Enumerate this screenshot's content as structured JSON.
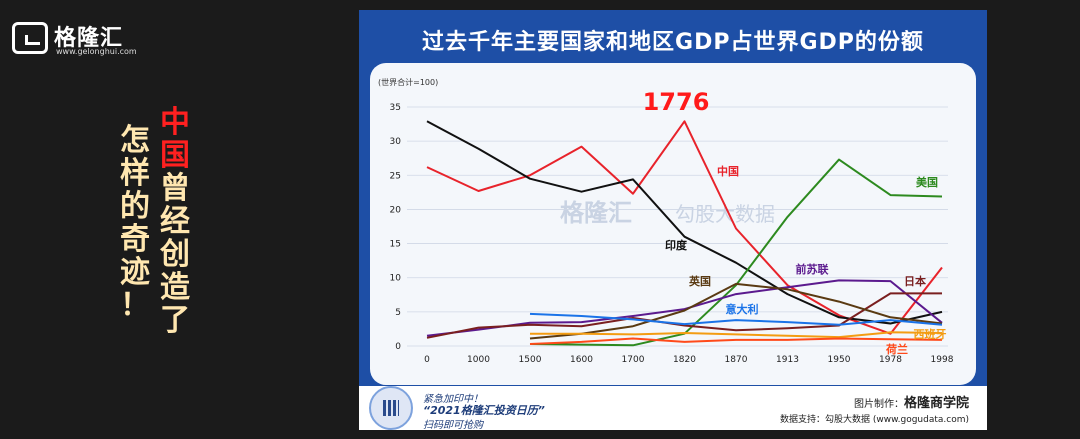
{
  "brand": {
    "name": "格隆汇",
    "url": "www.gelonghui.com"
  },
  "side_caption": {
    "col1": "怎样的奇迹！",
    "col2_red": "中国",
    "col2_rest": "曾经创造了"
  },
  "panel": {
    "title": "过去千年主要国家和地区GDP占世界GDP的份额"
  },
  "footer": {
    "line1": "紧急加印中！",
    "line2": "“2021格隆汇投资日历”",
    "line3": "扫码即可抢购",
    "credit_label": "图片制作：",
    "credit_value": "格隆商学院",
    "source_label": "数据支持：勾股大数据",
    "source_url": "(www.gogudata.com)"
  },
  "watermark": {
    "logo": "格隆汇",
    "sub": "www.gelonghui.com",
    "right": "勾股大数据",
    "right_sub": "www.gogudata.com"
  },
  "chart_data": {
    "type": "line",
    "unit_label": "(世界合计=100)",
    "categories": [
      "0",
      "1000",
      "1500",
      "1600",
      "1700",
      "1820",
      "1870",
      "1913",
      "1950",
      "1978",
      "1998"
    ],
    "ylim": [
      0,
      35
    ],
    "yticks": [
      0,
      5,
      10,
      15,
      20,
      25,
      30,
      35
    ],
    "grid": true,
    "annotation": {
      "text": "1776",
      "color": "#ff1a1a"
    },
    "series": [
      {
        "name": "中国",
        "color": "#e8232b",
        "values": [
          26.2,
          22.7,
          25.0,
          29.2,
          22.3,
          32.9,
          17.2,
          8.9,
          4.5,
          1.8,
          11.5
        ]
      },
      {
        "name": "印度",
        "color": "#111111",
        "values": [
          32.9,
          28.9,
          24.5,
          22.6,
          24.4,
          16.0,
          12.2,
          7.6,
          4.2,
          3.3,
          5.0
        ]
      },
      {
        "name": "美国",
        "color": "#2d8a1f",
        "values": [
          null,
          null,
          0.3,
          0.2,
          0.1,
          1.8,
          8.9,
          18.9,
          27.3,
          22.1,
          21.9
        ]
      },
      {
        "name": "前苏联",
        "color": "#5b1a8e",
        "values": [
          1.5,
          2.4,
          3.4,
          3.5,
          4.4,
          5.4,
          7.6,
          8.6,
          9.6,
          9.5,
          3.4
        ]
      },
      {
        "name": "日本",
        "color": "#7a1f1f",
        "values": [
          1.2,
          2.7,
          3.1,
          2.9,
          4.1,
          3.0,
          2.3,
          2.6,
          3.0,
          7.7,
          7.7
        ]
      },
      {
        "name": "英国",
        "color": "#5a3a12",
        "values": [
          null,
          null,
          1.1,
          1.8,
          2.9,
          5.2,
          9.1,
          8.3,
          6.5,
          4.2,
          3.3
        ]
      },
      {
        "name": "意大利",
        "color": "#1a73e8",
        "values": [
          null,
          null,
          4.7,
          4.4,
          3.9,
          3.2,
          3.8,
          3.5,
          3.1,
          3.8,
          3.1
        ]
      },
      {
        "name": "西班牙",
        "color": "#f39c12",
        "values": [
          null,
          null,
          1.8,
          1.8,
          1.7,
          1.9,
          1.7,
          1.5,
          1.3,
          2.0,
          1.9
        ]
      },
      {
        "name": "荷兰",
        "color": "#ff4a1a",
        "values": [
          null,
          null,
          0.3,
          0.6,
          1.1,
          0.6,
          0.9,
          0.9,
          1.1,
          1.0,
          0.9
        ]
      }
    ]
  }
}
